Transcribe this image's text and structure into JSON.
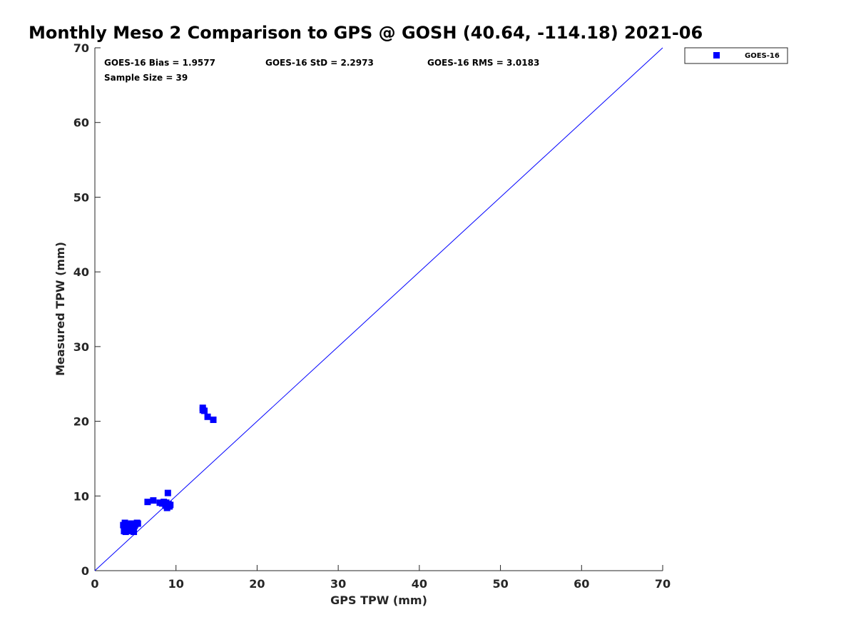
{
  "chart_data": {
    "type": "scatter",
    "title": "Monthly Meso 2 Comparison to GPS @ GOSH (40.64, -114.18) 2021-06",
    "xlabel": "GPS TPW (mm)",
    "ylabel": "Measured TPW (mm)",
    "xlim": [
      0,
      70
    ],
    "ylim": [
      0,
      70
    ],
    "xticks": [
      "0",
      "10",
      "20",
      "30",
      "40",
      "50",
      "60",
      "70"
    ],
    "yticks": [
      "0",
      "10",
      "20",
      "30",
      "40",
      "50",
      "60",
      "70"
    ],
    "grid": false,
    "legend_position": "outside top-right",
    "stats": {
      "bias": "GOES-16 Bias = 1.9577",
      "std": "GOES-16 StD = 2.2973",
      "rms": "GOES-16 RMS = 3.0183",
      "sample_size": "Sample Size = 39"
    },
    "reference_line": {
      "x": [
        0,
        70
      ],
      "y": [
        0,
        70
      ],
      "color": "#0000ff"
    },
    "series": [
      {
        "name": "GOES-16",
        "color": "#0000ff",
        "marker": "square",
        "x": [
          3.5,
          3.7,
          3.8,
          4.0,
          4.2,
          4.4,
          4.5,
          4.6,
          4.8,
          5.0,
          5.2,
          3.6,
          3.9,
          4.1,
          4.3,
          4.7,
          4.9,
          5.3,
          4.0,
          4.5,
          6.5,
          7.2,
          8.0,
          8.3,
          8.5,
          8.7,
          8.8,
          8.9,
          9.0,
          9.1,
          9.2,
          9.3,
          8.6,
          9.0,
          13.3,
          13.5,
          13.3,
          13.9,
          14.6
        ],
        "y": [
          6.1,
          6.4,
          5.2,
          5.8,
          6.0,
          5.5,
          6.3,
          5.9,
          5.2,
          6.2,
          6.4,
          5.3,
          5.6,
          6.2,
          5.4,
          5.8,
          6.0,
          6.3,
          5.9,
          5.3,
          9.2,
          9.4,
          9.1,
          9.0,
          9.2,
          8.7,
          9.1,
          8.4,
          8.6,
          8.9,
          8.6,
          8.8,
          9.0,
          10.4,
          21.5,
          21.4,
          21.8,
          20.6,
          20.2
        ]
      }
    ]
  }
}
